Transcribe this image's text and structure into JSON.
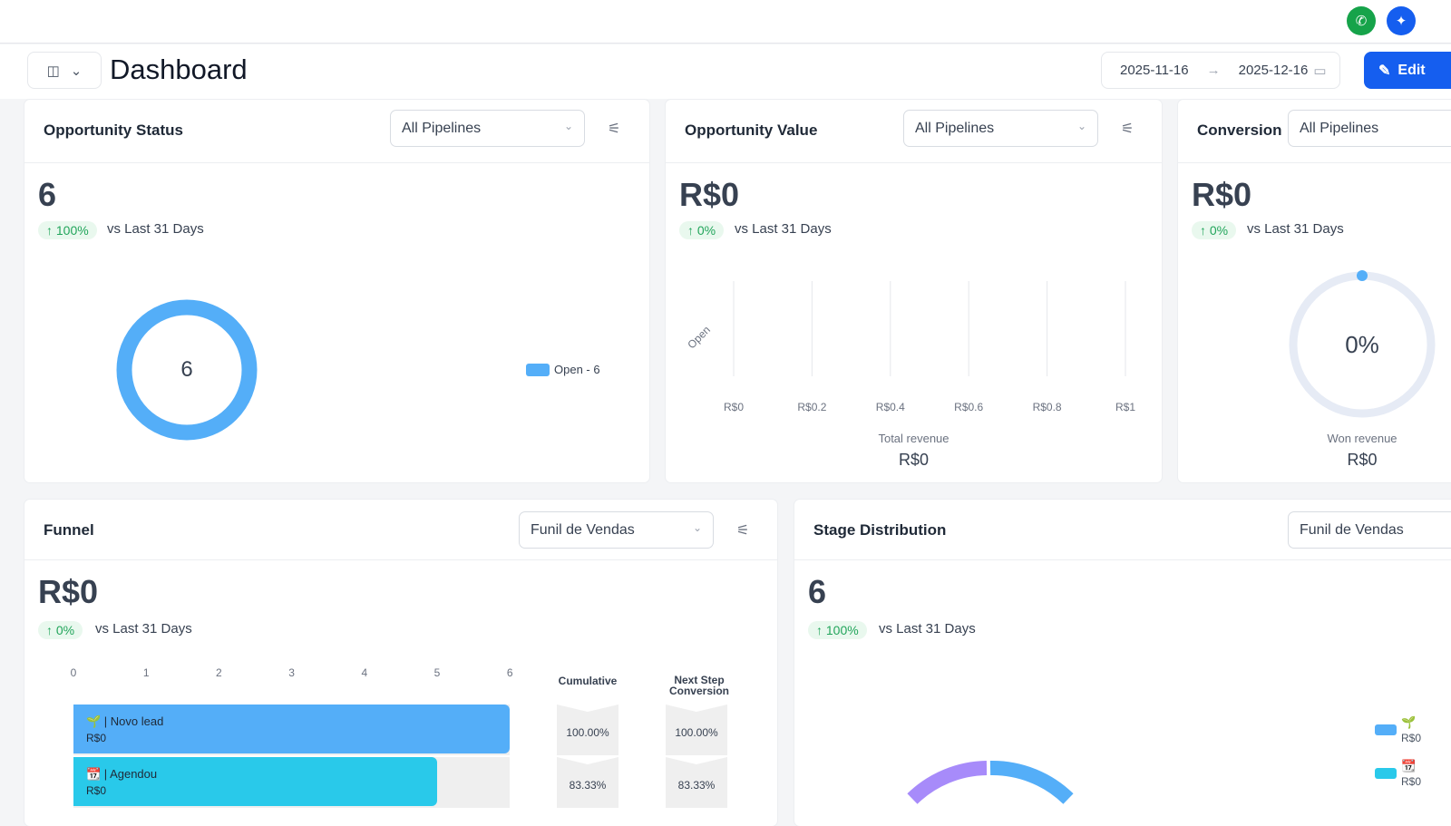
{
  "topbar": {
    "phone_icon": "phone-icon",
    "ai_icon": "sparkle-icon"
  },
  "header": {
    "title": "Dashboard",
    "date_start": "2025-11-16",
    "date_end": "2025-12-16",
    "edit_label": "Edit"
  },
  "opportunity_status": {
    "title": "Opportunity Status",
    "pipeline": "All Pipelines",
    "value": "6",
    "change": "↑ 100%",
    "vs": "vs Last 31 Days",
    "donut_center": "6",
    "legend": "Open - 6",
    "chart_data": {
      "type": "pie",
      "series": [
        {
          "name": "Open",
          "value": 6
        }
      ]
    }
  },
  "opportunity_value": {
    "title": "Opportunity Value",
    "pipeline": "All Pipelines",
    "value": "R$0",
    "change": "↑ 0%",
    "vs": "vs Last 31 Days",
    "category": "Open",
    "ticks": [
      "R$0",
      "R$0.2",
      "R$0.4",
      "R$0.6",
      "R$0.8",
      "R$1"
    ],
    "total_label": "Total revenue",
    "total_value": "R$0",
    "chart_data": {
      "type": "bar",
      "categories": [
        "Open"
      ],
      "values": [
        0
      ],
      "xlim": [
        0,
        1
      ]
    }
  },
  "conversion": {
    "title": "Conversion",
    "pipeline": "All Pipelines",
    "value": "R$0",
    "change": "↑ 0%",
    "vs": "vs Last 31 Days",
    "gauge": "0%",
    "gauge_fraction": 0,
    "won_label": "Won revenue",
    "won_value": "R$0"
  },
  "funnel": {
    "title": "Funnel",
    "pipeline": "Funil de Vendas",
    "value": "R$0",
    "change": "↑ 0%",
    "vs": "vs Last 31 Days",
    "ticks": [
      "0",
      "1",
      "2",
      "3",
      "4",
      "5",
      "6"
    ],
    "cumulative_header": "Cumulative",
    "next_header": "Next Step Conversion",
    "stages": [
      {
        "name": "🌱 | Novo lead",
        "value": "R$0",
        "count": 6,
        "cumulative": "100.00%",
        "next": "100.00%",
        "color": "#54aef8"
      },
      {
        "name": "📆 | Agendou",
        "value": "R$0",
        "count": 5,
        "cumulative": "83.33%",
        "next": "83.33%",
        "color": "#29c9ea"
      }
    ],
    "chart_data": {
      "type": "bar",
      "categories": [
        "Novo lead",
        "Agendou"
      ],
      "values": [
        6,
        5
      ],
      "xlim": [
        0,
        6
      ]
    }
  },
  "stage_distribution": {
    "title": "Stage Distribution",
    "pipeline": "Funil de Vendas",
    "value": "6",
    "change": "↑ 100%",
    "vs": "vs Last 31 Days",
    "legend": [
      {
        "icon": "🌱",
        "value": "R$0",
        "color": "#54aef8"
      },
      {
        "icon": "📆",
        "value": "R$0",
        "color": "#29c9ea"
      }
    ]
  }
}
